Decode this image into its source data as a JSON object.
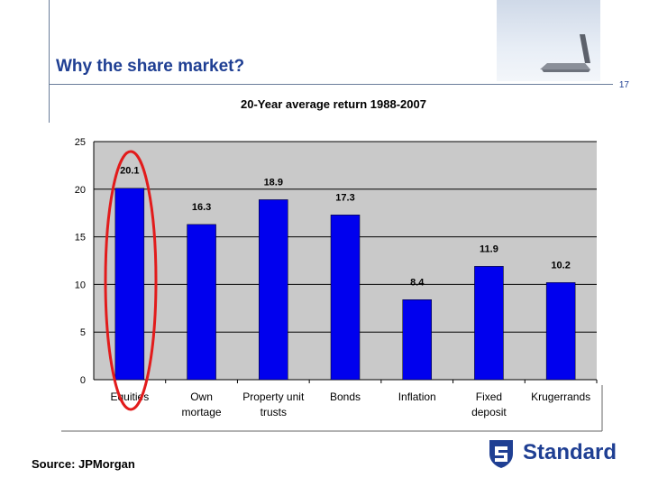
{
  "slide": {
    "title": "Why the share market?",
    "page_number": "17",
    "source": "Source: JPMorgan",
    "logo_text": "Standard"
  },
  "colors": {
    "bar": "#0000ee",
    "plot_bg": "#c9c9c9",
    "title": "#1f3f93",
    "highlight": "#e21b1b"
  },
  "chart_data": {
    "type": "bar",
    "title": "20-Year average return 1988-2007",
    "categories": [
      "Equities",
      [
        "Own",
        "mortage"
      ],
      [
        "Property unit",
        "trusts"
      ],
      "Bonds",
      "Inflation",
      [
        "Fixed",
        "deposit"
      ],
      "Krugerrands"
    ],
    "values": [
      20.1,
      16.3,
      18.9,
      17.3,
      8.4,
      11.9,
      10.2
    ],
    "value_labels": [
      "20.1",
      "16.3",
      "18.9",
      "17.3",
      "8.4",
      "11.9",
      "10.2"
    ],
    "yticks": [
      "0",
      "5",
      "10",
      "15",
      "20",
      "25"
    ],
    "ylim": [
      0,
      25
    ],
    "grid": true,
    "highlighted_category": "Equities"
  }
}
